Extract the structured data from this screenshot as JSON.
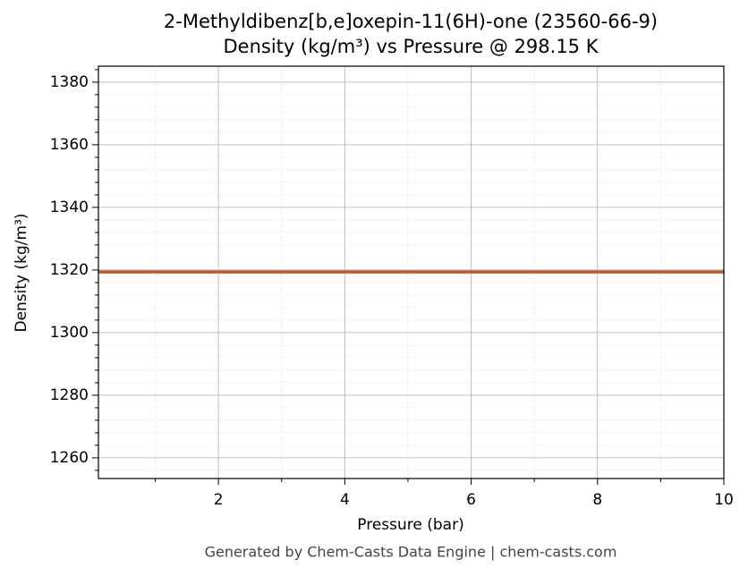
{
  "chart_data": {
    "type": "line",
    "title": "2-Methyldibenz[b,e]oxepin-11(6H)-one (23560-66-9)",
    "subtitle": "Density (kg/m³) vs Pressure @ 298.15 K",
    "x_label": "Pressure (bar)",
    "y_label": "Density (kg/m³)",
    "footer": "Generated by Chem-Casts Data Engine | chem-casts.com",
    "x": [
      0.1,
      10
    ],
    "series": [
      {
        "name": "Density",
        "color": "#c0562a",
        "values": [
          1319.4,
          1319.4
        ]
      }
    ],
    "xlim": [
      0.1,
      10
    ],
    "xticks": [
      2,
      4,
      6,
      8,
      10
    ],
    "xminorticks": [
      1,
      3,
      5,
      7,
      9
    ],
    "ylim": [
      1253.4,
      1385.1
    ],
    "yticks": [
      1260,
      1280,
      1300,
      1320,
      1340,
      1360,
      1380
    ],
    "yminorticks": [
      1256,
      1264,
      1268,
      1272,
      1276,
      1284,
      1288,
      1292,
      1296,
      1304,
      1308,
      1312,
      1316,
      1324,
      1328,
      1332,
      1336,
      1344,
      1348,
      1352,
      1356,
      1364,
      1368,
      1372,
      1376,
      1384
    ],
    "grid": true
  }
}
